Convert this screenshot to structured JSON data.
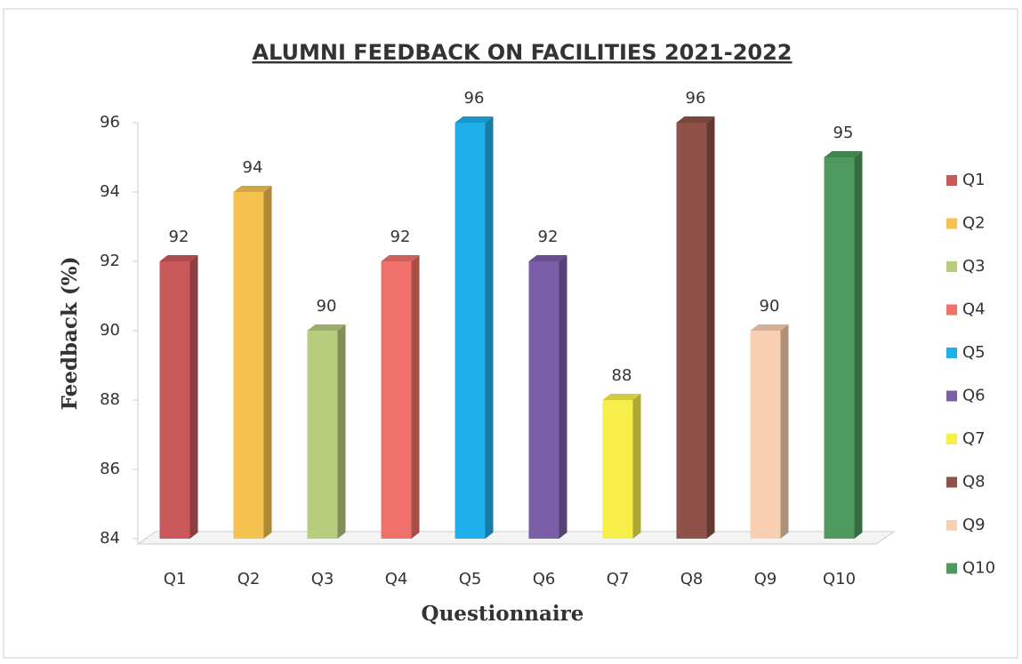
{
  "chart_data": {
    "type": "bar",
    "title": "ALUMNI FEEDBACK ON FACILITIES  2021-2022",
    "x_label": "Questionnaire",
    "y_label": "Feedback (%)",
    "categories": [
      "Q1",
      "Q2",
      "Q3",
      "Q4",
      "Q5",
      "Q6",
      "Q7",
      "Q8",
      "Q9",
      "Q10"
    ],
    "values": [
      92,
      94,
      90,
      92,
      96,
      92,
      88,
      96,
      90,
      95
    ],
    "colors": [
      "#c9585a",
      "#f5c250",
      "#b8cc7e",
      "#f0706a",
      "#1fb0ec",
      "#7a5ea8",
      "#f7ee4a",
      "#8e5248",
      "#f8cfb0",
      "#4e9a5e"
    ],
    "ylim": [
      84,
      96
    ],
    "yticks": [
      84,
      86,
      88,
      90,
      92,
      94,
      96
    ],
    "grid": false,
    "legend": "right"
  }
}
